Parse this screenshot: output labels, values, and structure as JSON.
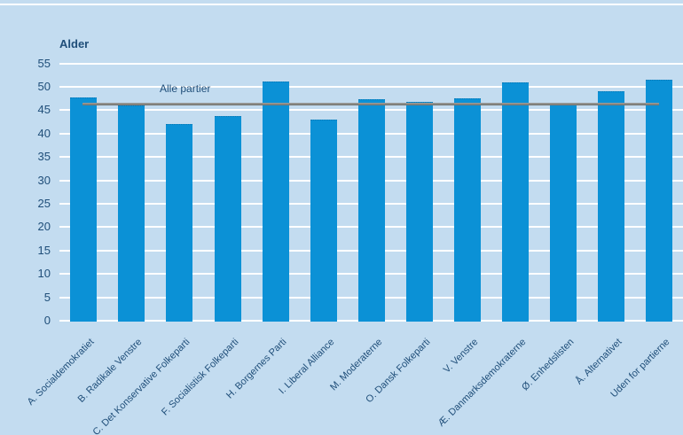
{
  "chart": {
    "title": "Alder",
    "reference_label": "Alle partier"
  },
  "chart_data": {
    "type": "bar",
    "title": "Alder",
    "xlabel": "",
    "ylabel": "Alder",
    "categories": [
      "A. Socialdemokratiet",
      "B. Radikale Venstre",
      "C. Det Konservative Folkeparti",
      "F. Socialistisk Folkeparti",
      "H. Borgernes Parti",
      "I. Liberal Alliance",
      "M. Moderaterne",
      "O. Dansk Folkeparti",
      "V. Venstre",
      "Æ. Danmarksdemokraterne",
      "Ø. Enhedslisten",
      "Å. Alternativet",
      "Uden for partierne"
    ],
    "values": [
      47.7,
      46.0,
      42.0,
      43.7,
      51.2,
      42.9,
      47.3,
      46.8,
      47.5,
      50.9,
      46.3,
      49.1,
      51.5
    ],
    "reference_line": {
      "label": "Alle partier",
      "value": 46.3
    },
    "ylim": [
      0,
      55
    ],
    "ytick_step": 5,
    "yticks": [
      0,
      5,
      10,
      15,
      20,
      25,
      30,
      35,
      40,
      45,
      50,
      55
    ],
    "grid": true,
    "legend_position": "none",
    "xlabel_rotation_deg": 45,
    "colors": {
      "bar": "#0b91d6",
      "background": "#c3dcf0",
      "gridline": "#ffffff",
      "text": "#1f4e79",
      "reference_line": "#8a8a85"
    }
  }
}
